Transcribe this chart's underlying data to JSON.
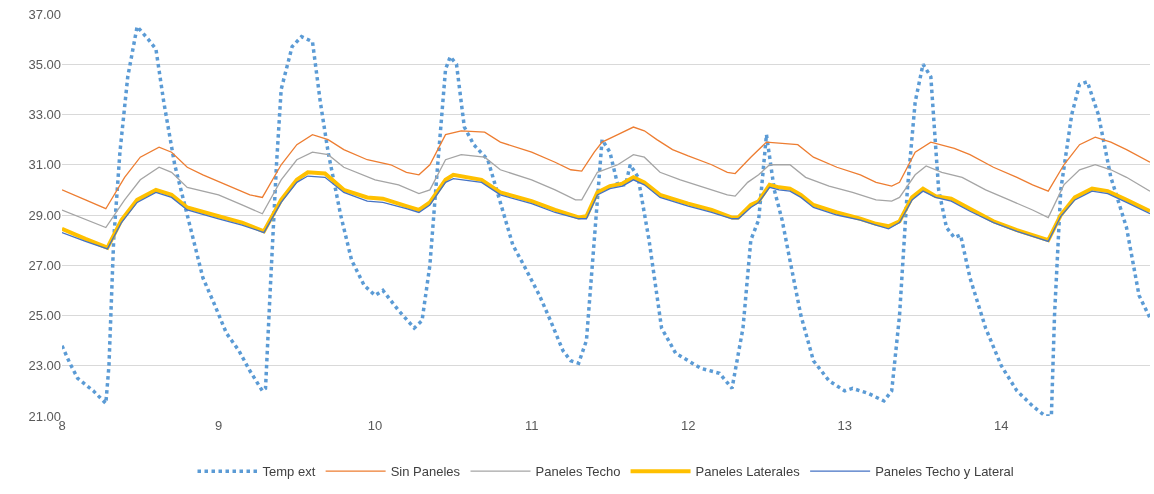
{
  "chart_data": {
    "type": "line",
    "xlim": [
      8,
      14.95
    ],
    "xticks": [
      8,
      9,
      10,
      11,
      12,
      13,
      14
    ],
    "ylim": [
      21,
      37
    ],
    "yticks": [
      {
        "value": 21,
        "label": "21.00"
      },
      {
        "value": 23,
        "label": "23.00"
      },
      {
        "value": 25,
        "label": "25.00"
      },
      {
        "value": 27,
        "label": "27.00"
      },
      {
        "value": 29,
        "label": "29.00"
      },
      {
        "value": 31,
        "label": "31.00"
      },
      {
        "value": 33,
        "label": "33.00"
      },
      {
        "value": 35,
        "label": "35.00"
      },
      {
        "value": 37,
        "label": "37.00"
      }
    ],
    "grid": "y",
    "legend": "bottom",
    "marker": "none",
    "series": [
      {
        "name": "Temp ext",
        "color": "#5b9bd5",
        "line_style": "dotted",
        "x": [
          8.0,
          8.05,
          8.1,
          8.2,
          8.28,
          8.3,
          8.33,
          8.37,
          8.42,
          8.48,
          8.55,
          8.6,
          8.65,
          8.72,
          8.8,
          8.9,
          8.97,
          9.05,
          9.13,
          9.2,
          9.28,
          9.3,
          9.33,
          9.37,
          9.4,
          9.47,
          9.53,
          9.6,
          9.65,
          9.7,
          9.78,
          9.85,
          9.93,
          10.0,
          10.05,
          10.15,
          10.25,
          10.3,
          10.35,
          10.4,
          10.45,
          10.48,
          10.52,
          10.57,
          10.63,
          10.72,
          10.8,
          10.88,
          10.95,
          11.05,
          11.12,
          11.2,
          11.25,
          11.3,
          11.35,
          11.4,
          11.45,
          11.5,
          11.55,
          11.6,
          11.63,
          11.68,
          11.75,
          11.83,
          11.92,
          12.0,
          12.08,
          12.2,
          12.28,
          12.35,
          12.4,
          12.45,
          12.5,
          12.55,
          12.6,
          12.65,
          12.72,
          12.8,
          12.9,
          13.0,
          13.05,
          13.15,
          13.25,
          13.3,
          13.35,
          13.4,
          13.45,
          13.5,
          13.55,
          13.6,
          13.65,
          13.7,
          13.74,
          13.8,
          13.9,
          14.0,
          14.1,
          14.2,
          14.28,
          14.32,
          14.34,
          14.38,
          14.45,
          14.5,
          14.55,
          14.62,
          14.7,
          14.8,
          14.88,
          14.95
        ],
        "values": [
          23.8,
          23.1,
          22.5,
          22.0,
          21.5,
          23.0,
          28.0,
          31.5,
          34.5,
          36.5,
          36.0,
          35.6,
          33.5,
          31.0,
          29.0,
          26.5,
          25.5,
          24.3,
          23.6,
          22.8,
          22.0,
          22.1,
          26.0,
          31.0,
          34.0,
          35.7,
          36.1,
          35.9,
          33.5,
          31.5,
          29.0,
          27.2,
          26.2,
          25.8,
          26.0,
          25.2,
          24.5,
          24.8,
          27.0,
          31.0,
          34.8,
          35.3,
          35.0,
          32.5,
          31.8,
          31.2,
          29.5,
          27.8,
          27.0,
          25.8,
          24.8,
          23.6,
          23.2,
          23.1,
          24.0,
          28.0,
          32.0,
          31.5,
          30.2,
          30.2,
          31.0,
          30.5,
          28.0,
          24.5,
          23.5,
          23.2,
          22.9,
          22.7,
          22.1,
          24.5,
          28.0,
          28.8,
          32.2,
          30.0,
          28.8,
          27.2,
          25.0,
          23.2,
          22.4,
          22.0,
          22.1,
          21.9,
          21.6,
          22.0,
          25.0,
          30.0,
          33.5,
          35.0,
          34.5,
          30.0,
          28.5,
          28.1,
          28.2,
          26.5,
          24.5,
          23.0,
          22.0,
          21.4,
          21.0,
          21.0,
          25.0,
          30.0,
          33.0,
          34.2,
          34.3,
          33.0,
          30.5,
          28.5,
          25.8,
          24.9
        ]
      },
      {
        "name": "Sin Paneles",
        "color": "#ed7d31",
        "line_style": "solid",
        "x": [
          8.0,
          8.15,
          8.28,
          8.4,
          8.5,
          8.62,
          8.7,
          8.8,
          8.9,
          9.05,
          9.2,
          9.28,
          9.4,
          9.5,
          9.6,
          9.7,
          9.8,
          9.95,
          10.1,
          10.2,
          10.28,
          10.35,
          10.45,
          10.55,
          10.7,
          10.8,
          11.0,
          11.15,
          11.25,
          11.32,
          11.4,
          11.45,
          11.55,
          11.65,
          11.72,
          11.8,
          11.9,
          12.0,
          12.15,
          12.25,
          12.3,
          12.4,
          12.5,
          12.6,
          12.7,
          12.8,
          12.95,
          13.1,
          13.2,
          13.3,
          13.35,
          13.45,
          13.55,
          13.7,
          13.8,
          13.95,
          14.1,
          14.2,
          14.3,
          14.4,
          14.5,
          14.6,
          14.7,
          14.8,
          14.95
        ],
        "values": [
          30.0,
          29.6,
          29.25,
          30.5,
          31.3,
          31.7,
          31.5,
          30.9,
          30.6,
          30.2,
          29.8,
          29.7,
          31.0,
          31.8,
          32.2,
          32.0,
          31.6,
          31.2,
          31.0,
          30.7,
          30.6,
          31.0,
          32.2,
          32.35,
          32.3,
          31.9,
          31.5,
          31.1,
          30.8,
          30.75,
          31.5,
          31.9,
          32.2,
          32.5,
          32.35,
          32.0,
          31.6,
          31.35,
          31.0,
          30.7,
          30.65,
          31.3,
          31.9,
          31.85,
          31.8,
          31.3,
          30.9,
          30.6,
          30.3,
          30.15,
          30.3,
          31.5,
          31.9,
          31.65,
          31.4,
          30.9,
          30.5,
          30.2,
          29.95,
          31.0,
          31.8,
          32.1,
          31.9,
          31.6,
          31.1
        ]
      },
      {
        "name": "Paneles Techo",
        "color": "#a5a5a5",
        "line_style": "solid",
        "x": [
          8.0,
          8.28,
          8.4,
          8.5,
          8.62,
          8.7,
          8.8,
          9.0,
          9.15,
          9.28,
          9.4,
          9.5,
          9.6,
          9.7,
          9.8,
          10.0,
          10.15,
          10.28,
          10.35,
          10.45,
          10.55,
          10.7,
          10.8,
          11.0,
          11.15,
          11.28,
          11.32,
          11.42,
          11.55,
          11.65,
          11.72,
          11.82,
          11.95,
          12.1,
          12.25,
          12.3,
          12.38,
          12.45,
          12.52,
          12.65,
          12.75,
          12.9,
          13.05,
          13.2,
          13.3,
          13.35,
          13.45,
          13.52,
          13.62,
          13.75,
          13.9,
          14.05,
          14.2,
          14.3,
          14.4,
          14.5,
          14.6,
          14.7,
          14.8,
          14.95
        ],
        "values": [
          29.2,
          28.5,
          29.6,
          30.4,
          30.9,
          30.7,
          30.1,
          29.8,
          29.4,
          29.05,
          30.4,
          31.2,
          31.5,
          31.4,
          30.9,
          30.4,
          30.2,
          29.85,
          30.0,
          31.2,
          31.4,
          31.3,
          30.8,
          30.4,
          30.0,
          29.6,
          29.6,
          30.7,
          31.0,
          31.4,
          31.3,
          30.7,
          30.4,
          30.1,
          29.8,
          29.75,
          30.3,
          30.6,
          31.0,
          31.0,
          30.5,
          30.15,
          29.9,
          29.6,
          29.55,
          29.7,
          30.6,
          30.95,
          30.7,
          30.5,
          30.0,
          29.6,
          29.2,
          28.9,
          30.2,
          30.8,
          31.0,
          30.8,
          30.5,
          29.95
        ]
      },
      {
        "name": "Paneles Laterales",
        "color": "#ffc000",
        "line_style": "solid",
        "x": [
          8.0,
          8.15,
          8.29,
          8.38,
          8.48,
          8.6,
          8.7,
          8.8,
          9.0,
          9.15,
          9.29,
          9.4,
          9.5,
          9.57,
          9.68,
          9.8,
          9.95,
          10.05,
          10.2,
          10.28,
          10.35,
          10.45,
          10.5,
          10.68,
          10.8,
          11.0,
          11.15,
          11.3,
          11.35,
          11.42,
          11.5,
          11.58,
          11.65,
          11.72,
          11.82,
          12.0,
          12.15,
          12.28,
          12.32,
          12.4,
          12.45,
          12.52,
          12.58,
          12.65,
          12.72,
          12.8,
          12.95,
          13.1,
          13.2,
          13.28,
          13.35,
          13.43,
          13.5,
          13.58,
          13.68,
          13.8,
          13.95,
          14.1,
          14.2,
          14.3,
          14.38,
          14.47,
          14.58,
          14.68,
          14.8,
          14.95
        ],
        "values": [
          28.45,
          28.05,
          27.7,
          28.8,
          29.6,
          30.0,
          29.8,
          29.3,
          28.95,
          28.7,
          28.35,
          29.6,
          30.4,
          30.7,
          30.65,
          30.0,
          29.7,
          29.65,
          29.35,
          29.2,
          29.5,
          30.4,
          30.6,
          30.4,
          29.9,
          29.55,
          29.2,
          28.9,
          28.95,
          29.9,
          30.15,
          30.25,
          30.5,
          30.3,
          29.8,
          29.45,
          29.2,
          28.9,
          28.9,
          29.4,
          29.55,
          30.2,
          30.1,
          30.05,
          29.8,
          29.4,
          29.1,
          28.85,
          28.65,
          28.55,
          28.75,
          29.7,
          30.05,
          29.75,
          29.65,
          29.25,
          28.75,
          28.4,
          28.2,
          28.0,
          29.0,
          29.7,
          30.05,
          29.95,
          29.6,
          29.15
        ]
      },
      {
        "name": "Paneles Techo y Lateral",
        "color": "#4472c4",
        "line_style": "solid",
        "x": [
          8.0,
          8.15,
          8.29,
          8.38,
          8.48,
          8.6,
          8.7,
          8.8,
          9.0,
          9.15,
          9.29,
          9.4,
          9.5,
          9.57,
          9.68,
          9.8,
          9.95,
          10.05,
          10.2,
          10.28,
          10.35,
          10.45,
          10.5,
          10.68,
          10.8,
          11.0,
          11.15,
          11.3,
          11.35,
          11.42,
          11.5,
          11.58,
          11.65,
          11.72,
          11.82,
          12.0,
          12.15,
          12.28,
          12.32,
          12.4,
          12.45,
          12.52,
          12.58,
          12.65,
          12.72,
          12.8,
          12.95,
          13.1,
          13.2,
          13.28,
          13.35,
          13.43,
          13.5,
          13.58,
          13.68,
          13.8,
          13.95,
          14.1,
          14.2,
          14.3,
          14.38,
          14.47,
          14.58,
          14.68,
          14.8,
          14.95
        ],
        "values": [
          28.3,
          27.95,
          27.65,
          28.7,
          29.5,
          29.9,
          29.7,
          29.2,
          28.85,
          28.6,
          28.3,
          29.5,
          30.3,
          30.55,
          30.5,
          29.9,
          29.55,
          29.5,
          29.25,
          29.1,
          29.4,
          30.3,
          30.45,
          30.3,
          29.8,
          29.45,
          29.1,
          28.85,
          28.85,
          29.8,
          30.05,
          30.15,
          30.4,
          30.2,
          29.7,
          29.35,
          29.1,
          28.85,
          28.85,
          29.3,
          29.5,
          30.1,
          30.0,
          29.95,
          29.7,
          29.3,
          29.0,
          28.8,
          28.6,
          28.45,
          28.7,
          29.6,
          29.95,
          29.7,
          29.55,
          29.15,
          28.7,
          28.35,
          28.15,
          27.95,
          28.95,
          29.6,
          29.95,
          29.85,
          29.5,
          29.05
        ]
      }
    ]
  }
}
